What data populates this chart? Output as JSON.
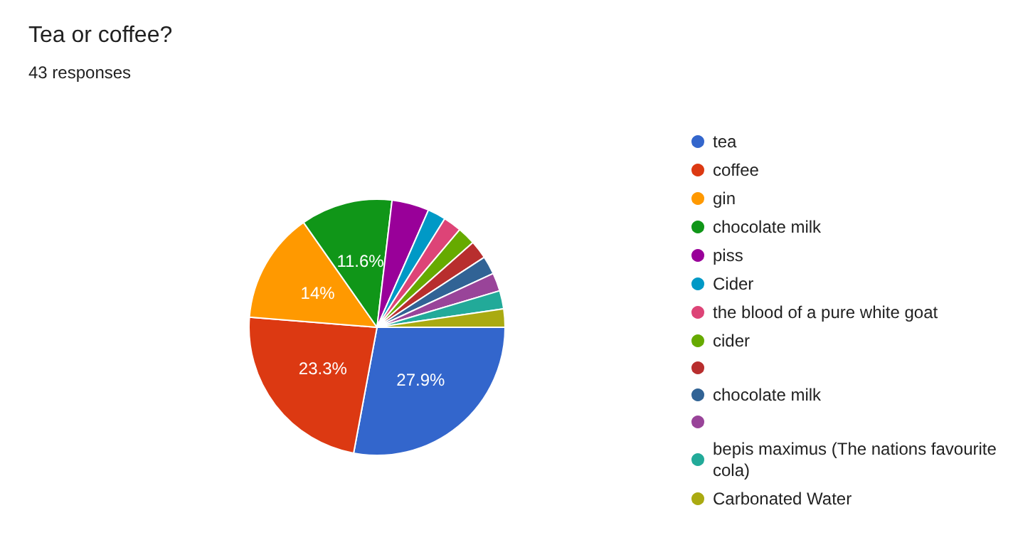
{
  "chart_data": {
    "type": "pie",
    "title": "Tea or coffee?",
    "subtitle": "43 responses",
    "categories": [
      "tea",
      "coffee",
      "gin",
      "chocolate milk",
      "piss",
      "Cider",
      "the blood of a pure white goat",
      "cider",
      null,
      "chocolate milk",
      null,
      "bepis maximus (The nations favourite cola)",
      "Carbonated Water"
    ],
    "values": [
      27.9,
      23.3,
      14,
      11.6,
      4.7,
      2.3,
      2.3,
      2.3,
      2.3,
      2.3,
      2.3,
      2.3,
      2.3
    ],
    "colors": [
      "#3366cc",
      "#dc3912",
      "#ff9900",
      "#109618",
      "#990099",
      "#0099c6",
      "#dd4477",
      "#66aa00",
      "#b82e2e",
      "#316395",
      "#994499",
      "#22aa99",
      "#aaaa11"
    ],
    "value_labels": [
      "27.9%",
      "23.3%",
      "14%",
      "11.6%",
      null,
      null,
      null,
      null,
      null,
      null,
      null,
      null,
      null
    ],
    "legend": "right"
  }
}
